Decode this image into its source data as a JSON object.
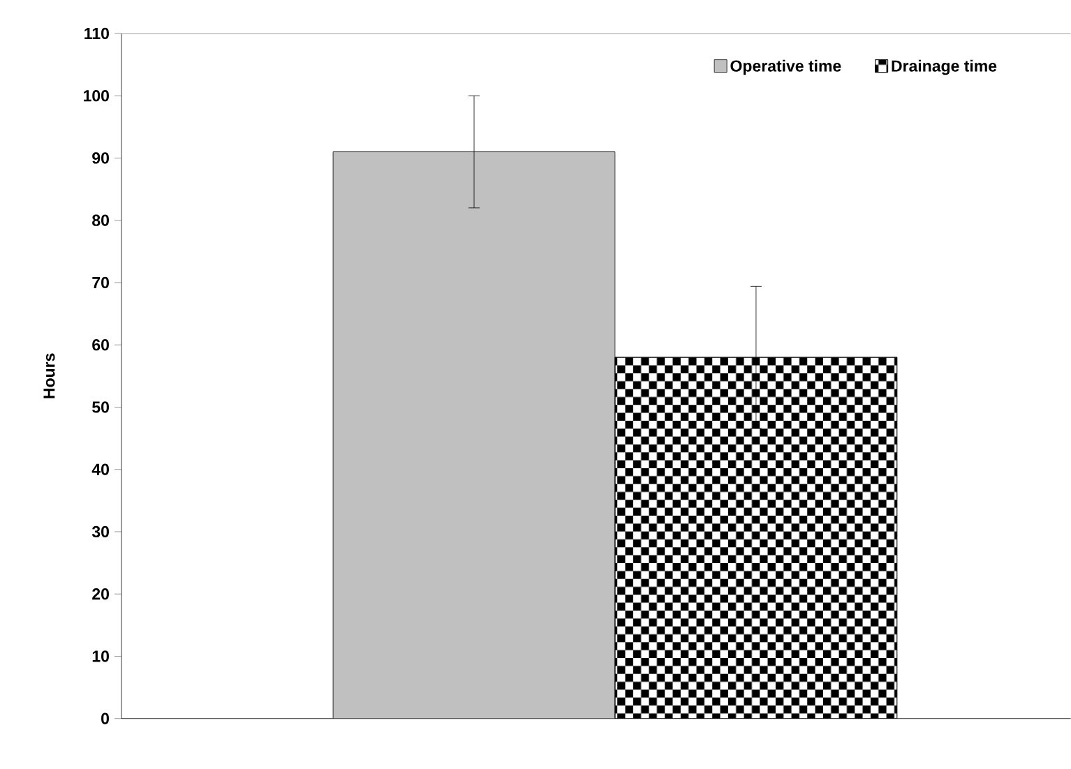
{
  "chart_data": {
    "type": "bar",
    "ylabel": "Hours",
    "categories": [
      null
    ],
    "series": [
      {
        "name": "Operative time",
        "color": "#c0c0c0",
        "values": [
          91
        ],
        "errors": [
          9
        ]
      },
      {
        "name": "Drainage time",
        "color": "#000000",
        "values": [
          58
        ],
        "errors": [
          11.4
        ]
      }
    ],
    "ylim": [
      0,
      110
    ],
    "yticks": [
      0,
      10,
      20,
      30,
      40,
      50,
      60,
      70,
      80,
      90,
      100,
      110
    ],
    "grid": false,
    "legend": "top right"
  }
}
